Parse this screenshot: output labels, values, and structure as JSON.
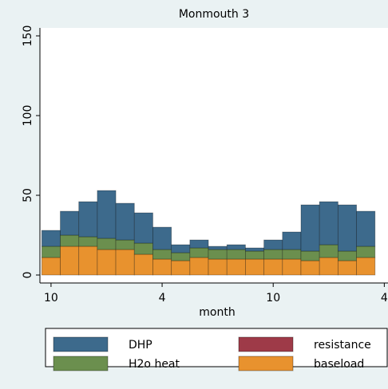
{
  "chart_data": {
    "type": "bar",
    "title": "Monmouth 3",
    "x_label": "month",
    "x": [
      1,
      2,
      3,
      4,
      5,
      6,
      7,
      8,
      9,
      10,
      11,
      12,
      13,
      14,
      15,
      16,
      17,
      18
    ],
    "xlim": [
      0.4,
      19.2
    ],
    "xticks": [
      {
        "value": 1,
        "label": "10"
      },
      {
        "value": 7,
        "label": "4"
      },
      {
        "value": 13,
        "label": "10"
      },
      {
        "value": 19,
        "label": "4"
      }
    ],
    "ylim": [
      -5,
      155
    ],
    "yticks": [
      0,
      50,
      100,
      150
    ],
    "stacked": true,
    "series": [
      {
        "name": "baseload",
        "color": "#e8922e",
        "values": [
          11,
          18,
          18,
          16,
          16,
          13,
          10,
          9,
          11,
          10,
          10,
          10,
          10,
          10,
          9,
          11,
          9,
          11
        ]
      },
      {
        "name": "H2o heat",
        "color": "#6b8f4e",
        "values": [
          7,
          7,
          6,
          7,
          6,
          7,
          6,
          5,
          6,
          6,
          6,
          5,
          6,
          6,
          6,
          8,
          6,
          7
        ]
      },
      {
        "name": "resistance",
        "color": "#9e3a48",
        "values": [
          0,
          0,
          0,
          0,
          0,
          0,
          0,
          0,
          0,
          0,
          0,
          0,
          0,
          0,
          0,
          0,
          0,
          0
        ]
      },
      {
        "name": "DHP",
        "color": "#3d6a8c",
        "values": [
          10,
          15,
          22,
          30,
          23,
          19,
          14,
          5,
          5,
          2,
          3,
          2,
          6,
          11,
          29,
          27,
          29,
          22
        ]
      }
    ]
  }
}
